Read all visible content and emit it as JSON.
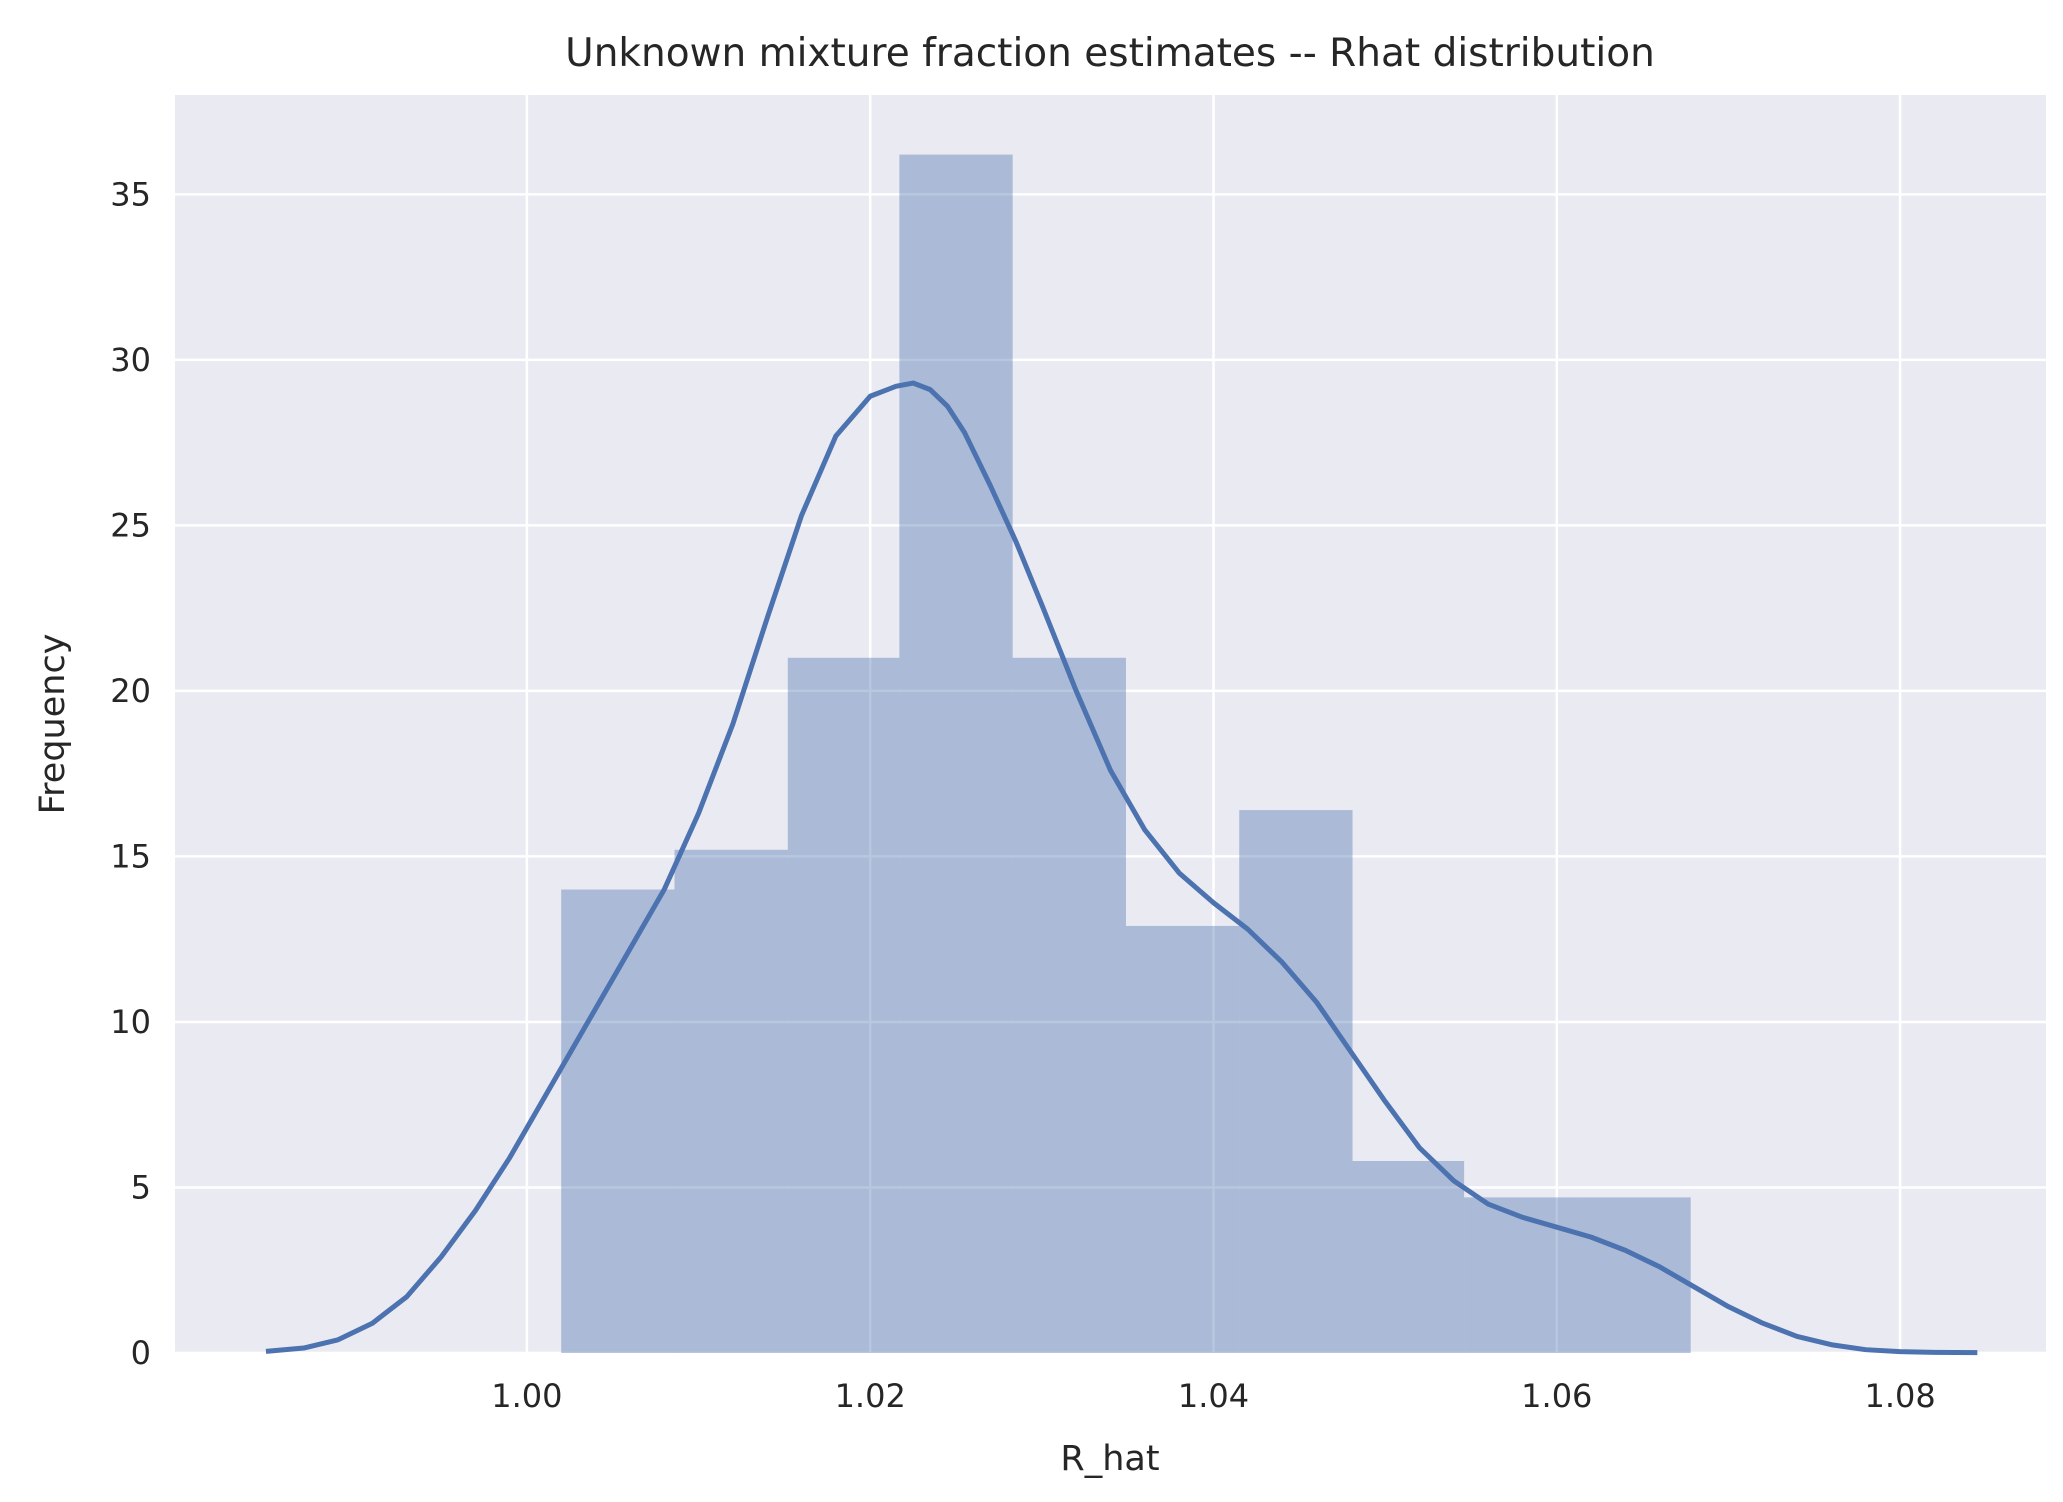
{
  "chart_data": {
    "type": "bar",
    "title": "Unknown mixture fraction estimates -- Rhat distribution",
    "xlabel": "R_hat",
    "ylabel": "Frequency",
    "xlim": [
      0.9795,
      1.0885
    ],
    "ylim": [
      0,
      38
    ],
    "xticks": [
      1.0,
      1.02,
      1.04,
      1.06,
      1.08
    ],
    "xtick_labels": [
      "1.00",
      "1.02",
      "1.04",
      "1.06",
      "1.08"
    ],
    "yticks": [
      0,
      5,
      10,
      15,
      20,
      25,
      30,
      35
    ],
    "ytick_labels": [
      "0",
      "5",
      "10",
      "15",
      "20",
      "25",
      "30",
      "35"
    ],
    "grid": true,
    "bin_edges": [
      1.002,
      1.0086,
      1.0152,
      1.0217,
      1.0283,
      1.0349,
      1.0415,
      1.0481,
      1.0546,
      1.0612,
      1.0678
    ],
    "values": [
      14.0,
      15.2,
      21.0,
      36.2,
      21.0,
      12.9,
      16.4,
      5.8,
      4.7,
      4.7
    ],
    "kde": {
      "x": [
        0.9848,
        0.987,
        0.989,
        0.991,
        0.993,
        0.995,
        0.997,
        0.999,
        1.0,
        1.002,
        1.004,
        1.006,
        1.008,
        1.01,
        1.012,
        1.014,
        1.016,
        1.018,
        1.02,
        1.0215,
        1.0225,
        1.0235,
        1.0245,
        1.0255,
        1.027,
        1.0285,
        1.03,
        1.032,
        1.034,
        1.036,
        1.038,
        1.04,
        1.042,
        1.044,
        1.046,
        1.048,
        1.05,
        1.052,
        1.054,
        1.056,
        1.058,
        1.06,
        1.062,
        1.064,
        1.066,
        1.068,
        1.07,
        1.072,
        1.074,
        1.076,
        1.078,
        1.08,
        1.082,
        1.0845
      ],
      "y": [
        0.05,
        0.15,
        0.4,
        0.9,
        1.7,
        2.9,
        4.3,
        5.9,
        6.8,
        8.6,
        10.4,
        12.2,
        14.0,
        16.3,
        19.0,
        22.2,
        25.3,
        27.7,
        28.9,
        29.2,
        29.3,
        29.1,
        28.6,
        27.8,
        26.2,
        24.5,
        22.6,
        20.0,
        17.6,
        15.8,
        14.5,
        13.6,
        12.8,
        11.8,
        10.6,
        9.1,
        7.6,
        6.2,
        5.2,
        4.5,
        4.1,
        3.8,
        3.5,
        3.1,
        2.6,
        2.0,
        1.4,
        0.9,
        0.5,
        0.25,
        0.1,
        0.04,
        0.02,
        0.01
      ]
    },
    "colors": {
      "axes_bg": "#eaeaf2",
      "grid": "#ffffff",
      "bar_fill": "#4c72b0",
      "bar_opacity": 0.4,
      "kde_line": "#4c72b0"
    }
  }
}
